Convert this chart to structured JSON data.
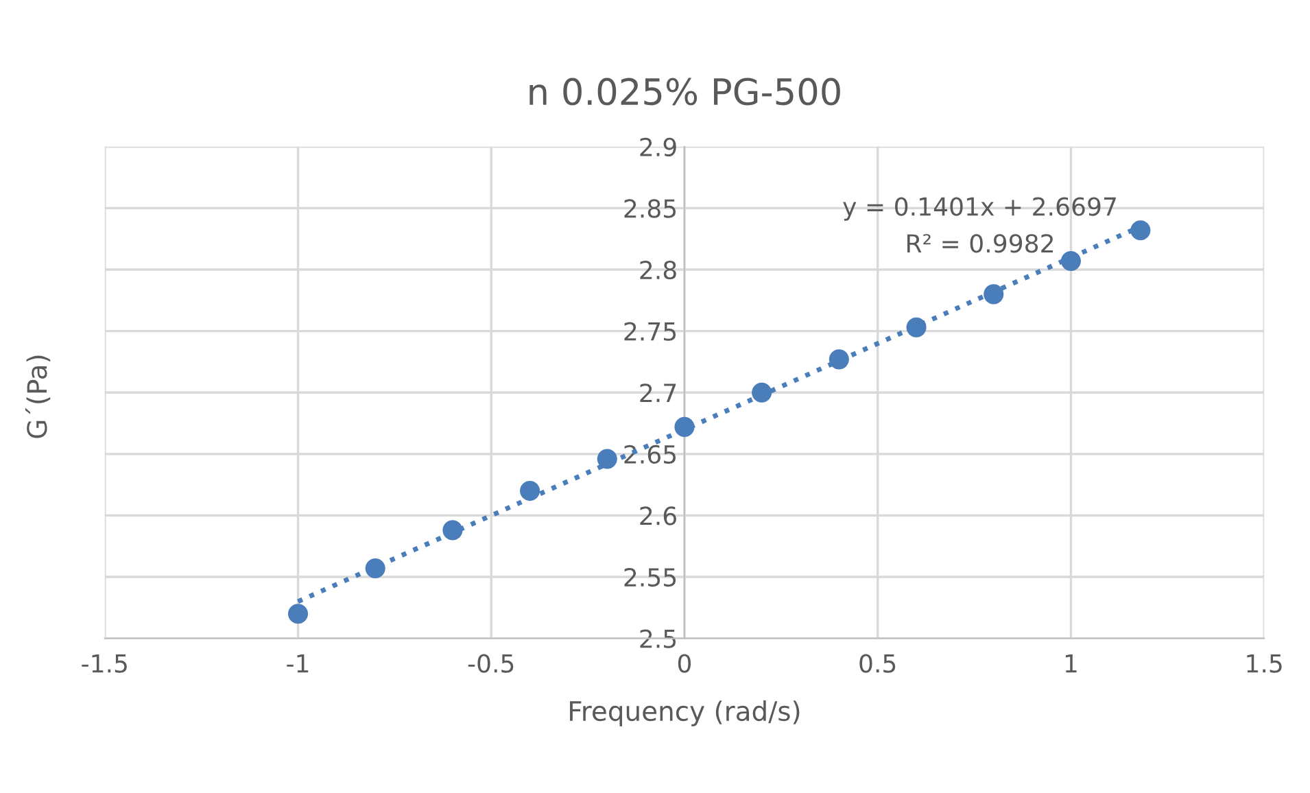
{
  "chart_data": {
    "type": "scatter",
    "title": "n 0.025% PG-500",
    "xlabel": "Frequency (rad/s)",
    "ylabel": "G´(Pa)",
    "xlim": [
      -1.5,
      1.5
    ],
    "xticks": [
      -1.5,
      -1,
      -0.5,
      0,
      0.5,
      1,
      1.5
    ],
    "ylim": [
      2.5,
      2.9
    ],
    "yticks": [
      2.5,
      2.55,
      2.6,
      2.65,
      2.7,
      2.75,
      2.8,
      2.85,
      2.9
    ],
    "grid": true,
    "series": [
      {
        "color": "#4a7ebb",
        "marker": "circle",
        "x": [
          -1,
          -0.8,
          -0.6,
          -0.4,
          -0.2,
          0,
          0.2,
          0.4,
          0.6,
          0.8,
          1,
          1.18
        ],
        "values": [
          2.52,
          2.557,
          2.588,
          2.62,
          2.646,
          2.672,
          2.7,
          2.727,
          2.753,
          2.78,
          2.807,
          2.832
        ]
      },
      {
        "type": "line",
        "color": "#4a7ebb",
        "line_style": "dotted",
        "x": [
          -1,
          1.18
        ],
        "values": [
          2.53,
          2.835
        ]
      }
    ],
    "annotations": [
      "y = 0.1401x + 2.6697",
      "R² = 0.9982"
    ]
  }
}
